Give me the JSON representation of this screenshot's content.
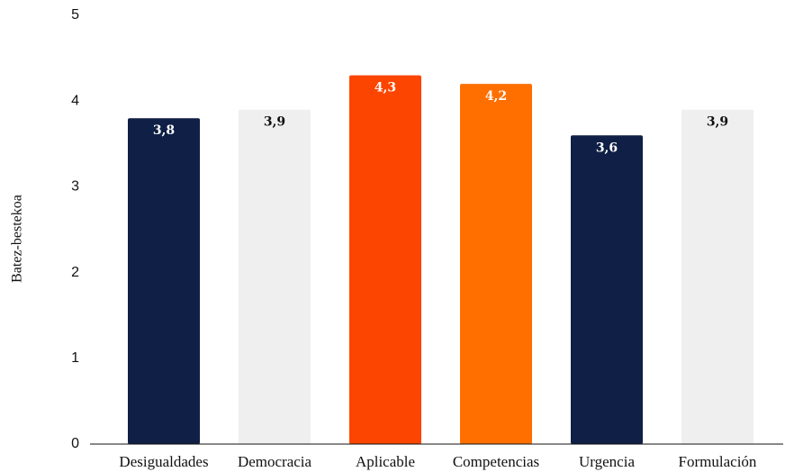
{
  "chart_data": {
    "type": "bar",
    "y_label": "Batez-bestekoa",
    "categories": [
      "Desigualdades",
      "Democracia",
      "Aplicable",
      "Competencias",
      "Urgencia",
      "Formulación"
    ],
    "values": [
      3.8,
      3.9,
      4.3,
      4.2,
      3.6,
      3.9
    ],
    "value_labels": [
      "3,8",
      "3,9",
      "4,3",
      "4,2",
      "3,6",
      "3,9"
    ],
    "colors": [
      "#0f1f45",
      "#efefef",
      "#fc4501",
      "#ff6f00",
      "#0f1f45",
      "#efefef"
    ],
    "ylim": [
      0,
      5
    ],
    "yticks": [
      0,
      1,
      2,
      3,
      4,
      5
    ],
    "grid": false
  }
}
